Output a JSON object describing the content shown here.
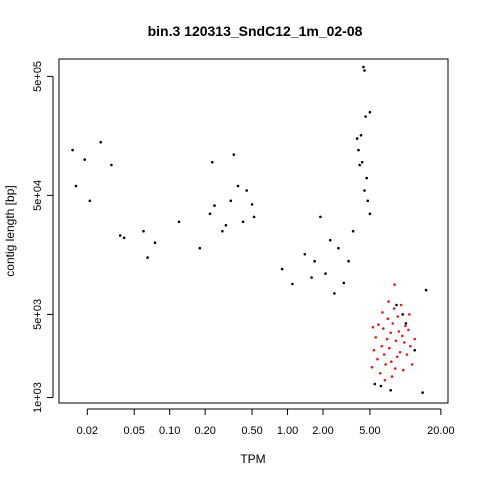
{
  "chart_data": {
    "type": "scatter",
    "title": "bin.3 120313_SndC12_1m_02-08",
    "xlabel": "TPM",
    "ylabel": "contig length [bp]",
    "x_scale": "log",
    "y_scale": "log",
    "xlim": [
      0.0115,
      23
    ],
    "ylim": [
      900,
      700000
    ],
    "grid": false,
    "legend": "none",
    "x_ticks": [
      {
        "value": 0.02,
        "label": "0.02"
      },
      {
        "value": 0.05,
        "label": "0.05"
      },
      {
        "value": 0.1,
        "label": "0.10"
      },
      {
        "value": 0.2,
        "label": "0.20"
      },
      {
        "value": 0.5,
        "label": "0.50"
      },
      {
        "value": 1,
        "label": "1.00"
      },
      {
        "value": 2,
        "label": "2.00"
      },
      {
        "value": 5,
        "label": "5.00"
      },
      {
        "value": 20,
        "label": "20.00"
      }
    ],
    "y_ticks": [
      {
        "value": 1000,
        "label": "1e+03"
      },
      {
        "value": 5000,
        "label": "5e+03"
      },
      {
        "value": 50000,
        "label": "5e+04"
      },
      {
        "value": 500000,
        "label": "5e+05"
      }
    ],
    "colors": {
      "main": "#000000",
      "highlight": "#e41a1c"
    },
    "series": [
      {
        "color": "#000000",
        "points": [
          [
            0.015,
            120000
          ],
          [
            0.016,
            60000
          ],
          [
            0.019,
            100000
          ],
          [
            0.021,
            45000
          ],
          [
            0.026,
            140000
          ],
          [
            0.032,
            90000
          ],
          [
            0.038,
            23000
          ],
          [
            0.041,
            22000
          ],
          [
            0.06,
            25000
          ],
          [
            0.075,
            20000
          ],
          [
            0.065,
            15000
          ],
          [
            0.12,
            30000
          ],
          [
            0.18,
            18000
          ],
          [
            0.22,
            35000
          ],
          [
            0.24,
            41000
          ],
          [
            0.28,
            25000
          ],
          [
            0.3,
            28000
          ],
          [
            0.33,
            45000
          ],
          [
            0.35,
            110000
          ],
          [
            0.38,
            60000
          ],
          [
            0.42,
            30000
          ],
          [
            0.45,
            55000
          ],
          [
            0.5,
            42000
          ],
          [
            0.52,
            33000
          ],
          [
            0.23,
            95000
          ],
          [
            0.9,
            12000
          ],
          [
            1.1,
            9000
          ],
          [
            1.4,
            16000
          ],
          [
            1.7,
            14000
          ],
          [
            1.9,
            33000
          ],
          [
            2.3,
            21000
          ],
          [
            2.7,
            18000
          ],
          [
            3.3,
            14000
          ],
          [
            3.6,
            25000
          ],
          [
            3.9,
            150000
          ],
          [
            4.0,
            120000
          ],
          [
            4.1,
            90000
          ],
          [
            4.2,
            160000
          ],
          [
            4.3,
            95000
          ],
          [
            4.4,
            600000
          ],
          [
            4.5,
            560000
          ],
          [
            4.6,
            230000
          ],
          [
            4.7,
            70000
          ],
          [
            4.5,
            55000
          ],
          [
            4.8,
            45000
          ],
          [
            5.0,
            35000
          ],
          [
            5.0,
            250000
          ],
          [
            8.4,
            6000
          ],
          [
            9.5,
            5000
          ],
          [
            10.1,
            4200
          ],
          [
            12.0,
            2500
          ],
          [
            14.0,
            1100
          ],
          [
            15.0,
            8000
          ],
          [
            5.5,
            1300
          ],
          [
            6.2,
            1250
          ],
          [
            7.5,
            1150
          ],
          [
            2.5,
            7500
          ],
          [
            1.6,
            10200
          ],
          [
            2.1,
            11000
          ],
          [
            3.0,
            9200
          ]
        ]
      },
      {
        "color": "#e41a1c",
        "points": [
          [
            5.2,
            1800
          ],
          [
            5.4,
            2500
          ],
          [
            5.6,
            3200
          ],
          [
            5.8,
            2100
          ],
          [
            5.9,
            4100
          ],
          [
            6.1,
            1600
          ],
          [
            6.3,
            2700
          ],
          [
            6.4,
            5200
          ],
          [
            6.5,
            3800
          ],
          [
            6.6,
            2300
          ],
          [
            6.8,
            1900
          ],
          [
            7.0,
            3100
          ],
          [
            7.1,
            4600
          ],
          [
            7.2,
            6400
          ],
          [
            7.3,
            2600
          ],
          [
            7.5,
            3500
          ],
          [
            7.6,
            2000
          ],
          [
            7.8,
            4200
          ],
          [
            8.0,
            5600
          ],
          [
            8.1,
            8900
          ],
          [
            8.3,
            3000
          ],
          [
            8.5,
            2200
          ],
          [
            8.6,
            4800
          ],
          [
            8.8,
            3600
          ],
          [
            9.0,
            2400
          ],
          [
            9.2,
            6000
          ],
          [
            9.4,
            3300
          ],
          [
            9.6,
            1700
          ],
          [
            9.8,
            2900
          ],
          [
            10.0,
            4000
          ],
          [
            10.3,
            2300
          ],
          [
            10.6,
            3700
          ],
          [
            11.0,
            2700
          ],
          [
            11.4,
            1900
          ],
          [
            12.0,
            3100
          ],
          [
            6.7,
            1400
          ],
          [
            7.7,
            1500
          ],
          [
            8.2,
            1750
          ],
          [
            5.3,
            3900
          ],
          [
            10.8,
            5000
          ]
        ]
      }
    ]
  }
}
